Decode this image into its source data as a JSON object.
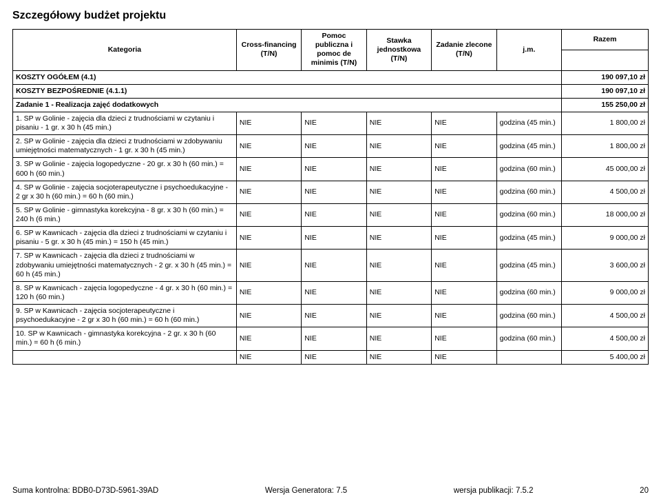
{
  "title": "Szczegółowy budżet projektu",
  "header": {
    "kategoria": "Kategoria",
    "cross": "Cross-financing (T/N)",
    "pomoc": "Pomoc publiczna i pomoc de minimis (T/N)",
    "stawka": "Stawka jednostkowa (T/N)",
    "zadanie": "Zadanie zlecone (T/N)",
    "jm": "j.m.",
    "razem": "Razem"
  },
  "sumRows": [
    {
      "label": "KOSZTY OGÓŁEM (4.1)",
      "value": "190 097,10 zł"
    },
    {
      "label": "KOSZTY BEZPOŚREDNIE (4.1.1)",
      "value": "190 097,10 zł"
    },
    {
      "label": "Zadanie 1 - Realizacja zajęć dodatkowych",
      "value": "155 250,00 zł"
    }
  ],
  "rows": [
    {
      "n": "1. SP w Golinie - zajęcia dla dzieci z trudnościami w czytaniu i pisaniu - 1 gr. x 30 h (45 min.)",
      "c1": "NIE",
      "c2": "NIE",
      "c3": "NIE",
      "c4": "NIE",
      "jm": "godzina (45 min.)",
      "v": "1 800,00 zł"
    },
    {
      "n": "2. SP w Golinie - zajęcia dla dzieci z trudnościami w zdobywaniu umiejętności matematycznych - 1 gr. x 30 h (45 min.)",
      "c1": "NIE",
      "c2": "NIE",
      "c3": "NIE",
      "c4": "NIE",
      "jm": "godzina (45 min.)",
      "v": "1 800,00 zł"
    },
    {
      "n": "3. SP w Golinie - zajęcia logopedyczne - 20 gr. x 30 h (60 min.) = 600 h (60 min.)",
      "c1": "NIE",
      "c2": "NIE",
      "c3": "NIE",
      "c4": "NIE",
      "jm": "godzina (60 min.)",
      "v": "45 000,00 zł"
    },
    {
      "n": "4. SP w Golinie - zajęcia socjoterapeutyczne i psychoedukacyjne - 2 gr x 30 h (60 min.) = 60 h (60 min.)",
      "c1": "NIE",
      "c2": "NIE",
      "c3": "NIE",
      "c4": "NIE",
      "jm": "godzina (60 min.)",
      "v": "4 500,00 zł"
    },
    {
      "n": "5. SP w Golinie - gimnastyka korekcyjna - 8 gr. x 30 h (60 min.) = 240 h (6 min.)",
      "c1": "NIE",
      "c2": "NIE",
      "c3": "NIE",
      "c4": "NIE",
      "jm": "godzina (60 min.)",
      "v": "18 000,00 zł"
    },
    {
      "n": "6. SP w Kawnicach - zajęcia dla dzieci z trudnościami w czytaniu i pisaniu - 5 gr. x 30 h (45 min.) = 150 h (45 min.)",
      "c1": "NIE",
      "c2": "NIE",
      "c3": "NIE",
      "c4": "NIE",
      "jm": "godzina (45 min.)",
      "v": "9 000,00 zł"
    },
    {
      "n": "7. SP w Kawnicach - zajęcia dla dzieci z trudnościami w zdobywaniu umiejętności matematycznych - 2 gr. x 30 h (45 min.) = 60 h (45 min.)",
      "c1": "NIE",
      "c2": "NIE",
      "c3": "NIE",
      "c4": "NIE",
      "jm": "godzina (45 min.)",
      "v": "3 600,00 zł"
    },
    {
      "n": "8. SP w Kawnicach - zajęcia logopedyczne - 4 gr. x 30 h (60 min.) = 120 h (60 min.)",
      "c1": "NIE",
      "c2": "NIE",
      "c3": "NIE",
      "c4": "NIE",
      "jm": "godzina (60 min.)",
      "v": "9 000,00 zł"
    },
    {
      "n": "9. SP w Kawnicach - zajęcia socjoterapeutyczne i psychoedukacyjne - 2 gr x 30 h (60 min.) = 60 h (60 min.)",
      "c1": "NIE",
      "c2": "NIE",
      "c3": "NIE",
      "c4": "NIE",
      "jm": "godzina (60 min.)",
      "v": "4 500,00 zł"
    },
    {
      "n": "10. SP w Kawnicach - gimnastyka korekcyjna - 2 gr. x 30 h (60 min.) = 60 h (6 min.)",
      "c1": "NIE",
      "c2": "NIE",
      "c3": "NIE",
      "c4": "NIE",
      "jm": "godzina (60 min.)",
      "v": "4 500,00 zł"
    }
  ],
  "lastRow": {
    "c1": "NIE",
    "c2": "NIE",
    "c3": "NIE",
    "c4": "NIE",
    "v": "5 400,00 zł"
  },
  "footer": {
    "suma": "Suma kontrolna: BDB0-D73D-5961-39AD",
    "gen": "Wersja Generatora: 7.5",
    "pub": "wersja publikacji: 7.5.2",
    "page": "20"
  }
}
